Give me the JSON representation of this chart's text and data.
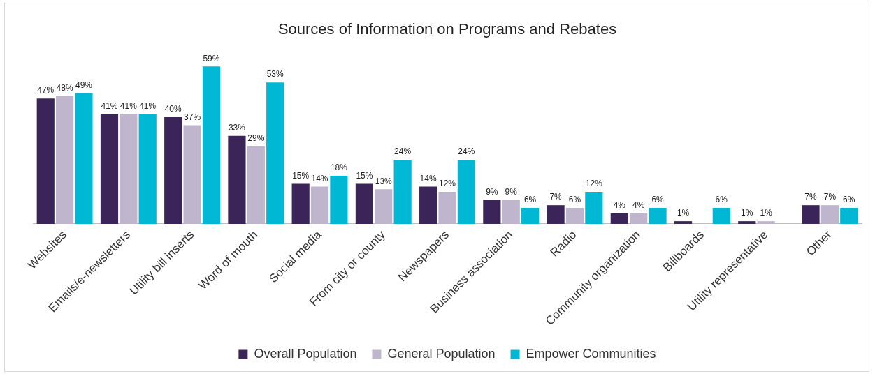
{
  "chart_data": {
    "type": "bar",
    "title": "Sources of Information on Programs and Rebates",
    "categories": [
      "Websites",
      "Emails/e-newsletters",
      "Utility bill inserts",
      "Word of mouth",
      "Social media",
      "From city or county",
      "Newspapers",
      "Business association",
      "Radio",
      "Community organization",
      "Billboards",
      "Utility representative",
      "Other"
    ],
    "series": [
      {
        "name": "Overall Population",
        "color": "#3b2458",
        "values": [
          47,
          41,
          40,
          33,
          15,
          15,
          14,
          9,
          7,
          4,
          1,
          1,
          7
        ],
        "value_labels": [
          "47%",
          "41%",
          "40%",
          "33%",
          "15%",
          "15%",
          "14%",
          "9%",
          "7%",
          "4%",
          "1%",
          "1%",
          "7%"
        ]
      },
      {
        "name": "General Population",
        "color": "#bfb5cc",
        "values": [
          48,
          41,
          37,
          29,
          14,
          13,
          12,
          9,
          6,
          4,
          null,
          1,
          7
        ],
        "value_labels": [
          "48%",
          "41%",
          "37%",
          "29%",
          "14%",
          "13%",
          "12%",
          "9%",
          "6%",
          "4%",
          null,
          "1%",
          "7%"
        ]
      },
      {
        "name": "Empower Communities",
        "color": "#00b8d4",
        "values": [
          49,
          41,
          59,
          53,
          18,
          24,
          24,
          6,
          12,
          6,
          6,
          null,
          6
        ],
        "value_labels": [
          "49%",
          "41%",
          "59%",
          "53%",
          "18%",
          "24%",
          "24%",
          "6%",
          "12%",
          "6%",
          "6%",
          null,
          "6%"
        ]
      }
    ],
    "legend": "bottom",
    "grid": false,
    "tick_labels": "x"
  }
}
